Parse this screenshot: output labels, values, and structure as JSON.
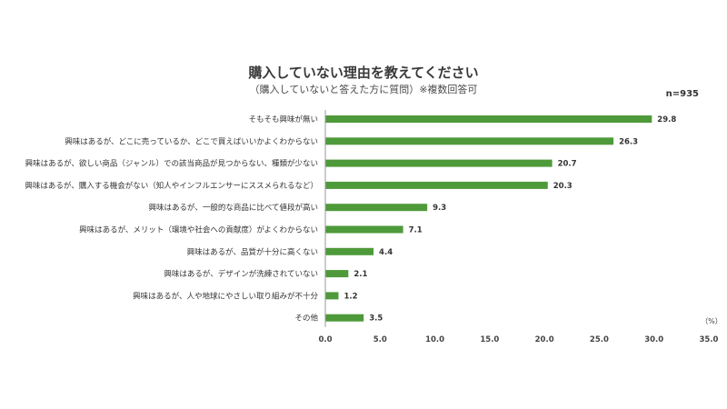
{
  "chart_data": {
    "type": "bar",
    "orientation": "horizontal",
    "title": "購入していない理由を教えてください",
    "subtitle": "（購入していないと答えた方に質問）※複数回答可",
    "sample_note": "n=935",
    "unit_label": "（%）",
    "categories": [
      "そもそも興味が無い",
      "興味はあるが、どこに売っているか、どこで買えばいいかよくわからない",
      "興味はあるが、欲しい商品（ジャンル）での該当商品が見つからない、種類が少ない",
      "興味はあるが、購入する機会がない（知人やインフルエンサーにススメられるなど）",
      "興味はあるが、一般的な商品に比べて値段が高い",
      "興味はあるが、メリット（環境や社会への貢献度）がよくわからない",
      "興味はあるが、品質が十分に高くない",
      "興味はあるが、デザインが洗練されていない",
      "興味はあるが、人や地球にやさしい取り組みが不十分",
      "その他"
    ],
    "values": [
      29.8,
      26.3,
      20.7,
      20.3,
      9.3,
      7.1,
      4.4,
      2.1,
      1.2,
      3.5
    ],
    "value_labels": [
      "29.8",
      "26.3",
      "20.7",
      "20.3",
      "9.3",
      "7.1",
      "4.4",
      "2.1",
      "1.2",
      "3.5"
    ],
    "xlim": [
      0,
      35
    ],
    "xticks": [
      "0.0",
      "5.0",
      "10.0",
      "15.0",
      "20.0",
      "25.0",
      "30.0",
      "35.0"
    ],
    "bar_color": "#4e9a3a",
    "grid": false,
    "legend": "none"
  }
}
